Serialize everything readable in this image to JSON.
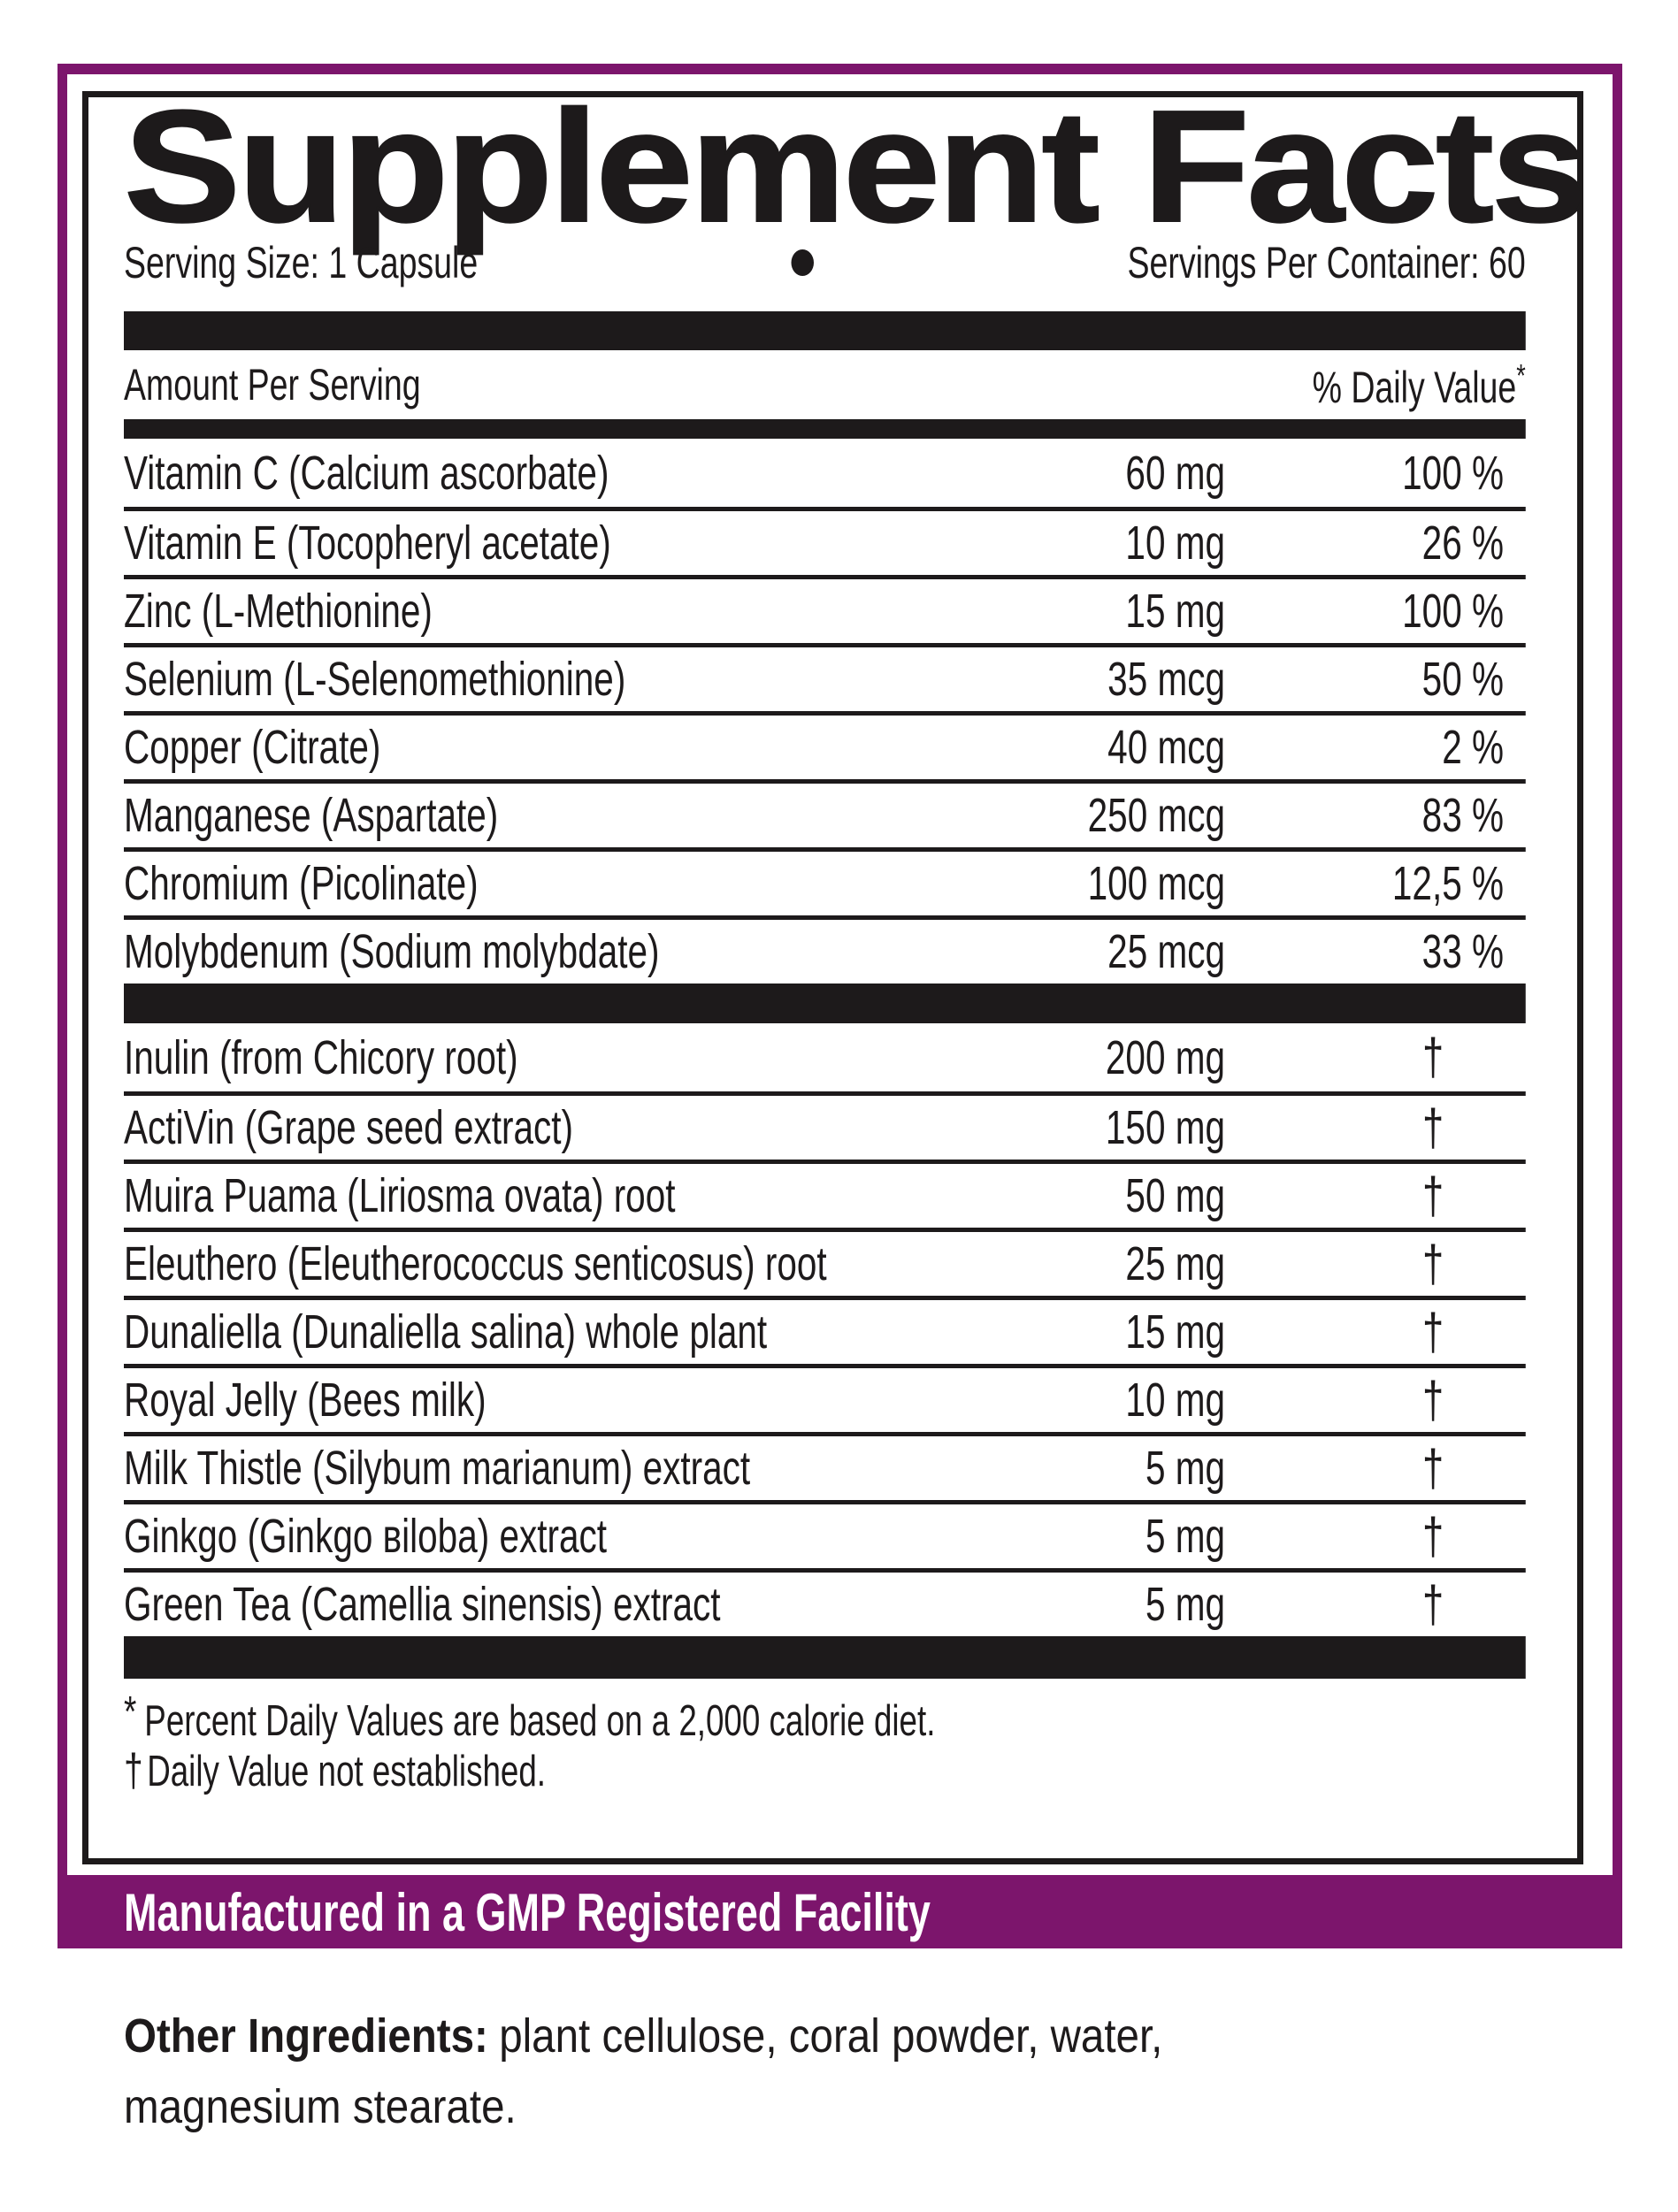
{
  "panel": {
    "title": "Supplement Facts",
    "serving_size": "Serving Size: 1 Capsule",
    "servings_per_container": "Servings Per Container: 60",
    "columns": {
      "amount_header": "Amount Per Serving",
      "dv_header": "% Daily Value",
      "dv_header_mark": "*"
    },
    "minerals": [
      {
        "name": "Vitamin C (Calcium ascorbate)",
        "amount": "60 mg",
        "dv": "100 %"
      },
      {
        "name": "Vitamin E (Tocopheryl acetate)",
        "amount": "10 mg",
        "dv": "26 %"
      },
      {
        "name": "Zinc (L-Methionine)",
        "amount": "15 mg",
        "dv": "100 %"
      },
      {
        "name": "Selenium (L-Selenomethionine)",
        "amount": "35 mcg",
        "dv": "50 %"
      },
      {
        "name": "Copper (Citrate)",
        "amount": "40 mcg",
        "dv": "2 %"
      },
      {
        "name": "Manganese (Aspartate)",
        "amount": "250 mcg",
        "dv": "83 %"
      },
      {
        "name": "Chromium (Picolinate)",
        "amount": "100 mcg",
        "dv": "12,5 %"
      },
      {
        "name": "Molybdenum (Sodium molybdate)",
        "amount": "25 mcg",
        "dv": "33 %"
      }
    ],
    "botanicals": [
      {
        "name": "Inulin (from Chicory root)",
        "amount": "200 mg",
        "dv": "†"
      },
      {
        "name": "ActiVin (Grape seed extract)",
        "amount": "150 mg",
        "dv": "†"
      },
      {
        "name": "Muira Puama (Liriosma ovata) root",
        "amount": "50 mg",
        "dv": "†"
      },
      {
        "name": "Eleuthero (Eleutherococcus senticosus) root",
        "amount": "25 mg",
        "dv": "†"
      },
      {
        "name": "Dunaliella (Dunaliella salina) whole plant",
        "amount": "15 mg",
        "dv": "†"
      },
      {
        "name": "Royal Jelly (Bees milk)",
        "amount": "10 mg",
        "dv": "†"
      },
      {
        "name": "Milk Thistle (Silybum marianum) extract",
        "amount": "5 mg",
        "dv": "†"
      },
      {
        "name": "Ginkgo (Ginkgo вiloba) extract",
        "amount": "5 mg",
        "dv": "†"
      },
      {
        "name": "Green Tea (Camellia sinensis) extract",
        "amount": "5 mg",
        "dv": "†"
      }
    ],
    "footnotes": {
      "star_mark": "*",
      "star_text": "Percent Daily Values are based on a 2,000 calorie diet.",
      "dagger_mark": "†",
      "dagger_text": "Daily Value not established."
    },
    "gmp_banner": "Manufactured in a GMP Registered Facility",
    "other_ingredients": {
      "label": "Other Ingredients:",
      "line1": "plant cellulose, coral powder, water,",
      "line2": "magnesium stearate."
    },
    "colors": {
      "purple": "#7C156C",
      "ink": "#1D1A1B"
    }
  }
}
